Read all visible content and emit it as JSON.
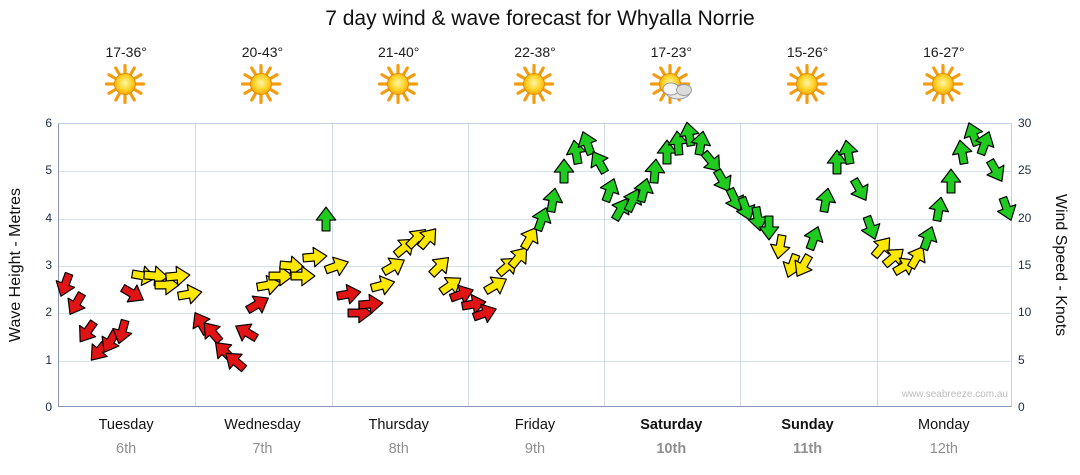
{
  "title": "7 day wind & wave forecast for Whyalla Norrie",
  "watermark": "www.seabreeze.com.au",
  "axes": {
    "left_label": "Wave Height - Metres",
    "right_label": "Wind Speed - Knots",
    "left_ticks": [
      0,
      1,
      2,
      3,
      4,
      5,
      6
    ],
    "right_ticks": [
      0,
      5,
      10,
      15,
      20,
      25,
      30
    ]
  },
  "days": [
    {
      "name": "Tuesday",
      "date": "6th",
      "temp": "17-36°",
      "icon": "sun",
      "weekend": false
    },
    {
      "name": "Wednesday",
      "date": "7th",
      "temp": "20-43°",
      "icon": "sun",
      "weekend": false
    },
    {
      "name": "Thursday",
      "date": "8th",
      "temp": "21-40°",
      "icon": "sun",
      "weekend": false
    },
    {
      "name": "Friday",
      "date": "9th",
      "temp": "22-38°",
      "icon": "sun",
      "weekend": false
    },
    {
      "name": "Saturday",
      "date": "10th",
      "temp": "17-23°",
      "icon": "sun-cloud",
      "weekend": true
    },
    {
      "name": "Sunday",
      "date": "11th",
      "temp": "15-26°",
      "icon": "sun",
      "weekend": true
    },
    {
      "name": "Monday",
      "date": "12th",
      "temp": "16-27°",
      "icon": "sun",
      "weekend": false
    }
  ],
  "colors": {
    "arrow_red": "#e01414",
    "arrow_yellow": "#ffe800",
    "arrow_green": "#1ecb1e",
    "arrow_outline": "#000000",
    "grid": "#d3e0ee",
    "axis": "#8596b5",
    "tick_text": "#1a2b4a",
    "date_text": "#8f8f8f",
    "sun_core": "#ffd428",
    "sun_rays": "#f39c12"
  },
  "chart_data": {
    "type": "scatter",
    "subtype": "wind-arrow-forecast-timeline",
    "title": "7 day wind & wave forecast for Whyalla Norrie",
    "categories": [
      "Tuesday 6th",
      "Wednesday 7th",
      "Thursday 8th",
      "Friday 9th",
      "Saturday 10th",
      "Sunday 11th",
      "Monday 12th"
    ],
    "points_per_day": 12,
    "x_unit": "2-hour intervals, 12 per day across 7 days (84 points)",
    "y_left": {
      "label": "Wave Height - Metres",
      "range": [
        0,
        6
      ],
      "ticks": [
        0,
        1,
        2,
        3,
        4,
        5,
        6
      ]
    },
    "y_right": {
      "label": "Wind Speed - Knots",
      "range": [
        0,
        30
      ],
      "ticks": [
        0,
        5,
        10,
        15,
        20,
        25,
        30
      ]
    },
    "wave_metres_rule": "wave metres = wind knots / 5 (shared curve, dual axes)",
    "grid": true,
    "legend": "none",
    "wind_knots": [
      13,
      11,
      8,
      6,
      7,
      8,
      12,
      14,
      14,
      13,
      14,
      12,
      9,
      8,
      6,
      5,
      8,
      11,
      13,
      14,
      15,
      14,
      16,
      20,
      15,
      12,
      10,
      11,
      13,
      15,
      17,
      18,
      18,
      15,
      13,
      12,
      11,
      10,
      13,
      15,
      16,
      18,
      20,
      22,
      25,
      27,
      28,
      26,
      23,
      21,
      22,
      23,
      25,
      27,
      28,
      29,
      28,
      26,
      24,
      22,
      21,
      20,
      19,
      17,
      15,
      15,
      18,
      22,
      26,
      27,
      23,
      19,
      17,
      16,
      15,
      16,
      18,
      21,
      24,
      27,
      29,
      28,
      25,
      21
    ],
    "arrow_dir_deg": [
      200,
      210,
      215,
      220,
      210,
      195,
      120,
      100,
      95,
      90,
      85,
      80,
      330,
      320,
      315,
      310,
      300,
      60,
      80,
      90,
      95,
      90,
      85,
      0,
      70,
      80,
      90,
      85,
      75,
      60,
      50,
      45,
      40,
      45,
      55,
      70,
      80,
      70,
      60,
      50,
      40,
      30,
      20,
      10,
      0,
      350,
      340,
      330,
      20,
      30,
      25,
      15,
      5,
      0,
      355,
      350,
      10,
      140,
      150,
      155,
      160,
      170,
      180,
      190,
      200,
      210,
      20,
      10,
      0,
      350,
      150,
      160,
      40,
      50,
      60,
      30,
      20,
      10,
      0,
      350,
      340,
      20,
      150,
      160
    ],
    "arrow_color": [
      "r",
      "r",
      "r",
      "r",
      "r",
      "r",
      "r",
      "y",
      "y",
      "y",
      "y",
      "y",
      "r",
      "r",
      "r",
      "r",
      "r",
      "r",
      "y",
      "y",
      "y",
      "y",
      "y",
      "g",
      "y",
      "r",
      "r",
      "r",
      "y",
      "y",
      "y",
      "y",
      "y",
      "y",
      "y",
      "r",
      "r",
      "r",
      "y",
      "y",
      "y",
      "y",
      "g",
      "g",
      "g",
      "g",
      "g",
      "g",
      "g",
      "g",
      "g",
      "g",
      "g",
      "g",
      "g",
      "g",
      "g",
      "g",
      "g",
      "g",
      "g",
      "g",
      "g",
      "y",
      "y",
      "y",
      "g",
      "g",
      "g",
      "g",
      "g",
      "g",
      "y",
      "y",
      "y",
      "y",
      "g",
      "g",
      "g",
      "g",
      "g",
      "g",
      "g",
      "g"
    ],
    "arrow_colors_hex": {
      "r": "#e01414",
      "y": "#ffe800",
      "g": "#1ecb1e"
    }
  }
}
